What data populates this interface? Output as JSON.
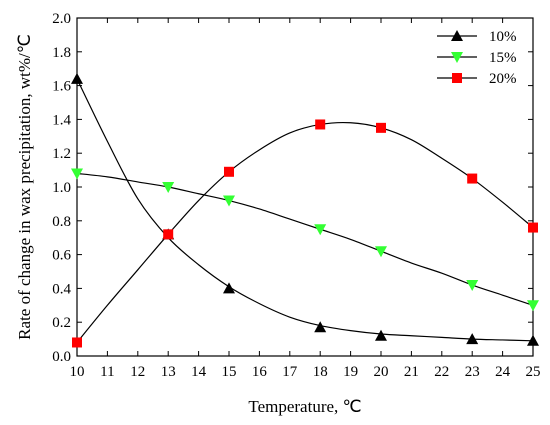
{
  "chart_data": {
    "type": "line",
    "xlabel": "Temperature, ℃",
    "ylabel": "Rate of change in wax precipitation, wt%/℃",
    "xlim": [
      10,
      25
    ],
    "ylim": [
      0,
      2.0
    ],
    "x_ticks": [
      10,
      11,
      12,
      13,
      14,
      15,
      16,
      17,
      18,
      19,
      20,
      21,
      22,
      23,
      24,
      25
    ],
    "y_ticks": [
      0.0,
      0.2,
      0.4,
      0.6,
      0.8,
      1.0,
      1.2,
      1.4,
      1.6,
      1.8,
      2.0
    ],
    "grid": false,
    "legend_position": "top-right",
    "series": [
      {
        "name": "10%",
        "marker": "triangle-up",
        "color": "#000000",
        "x": [
          10,
          13,
          15,
          18,
          20,
          23,
          25
        ],
        "y": [
          1.64,
          0.72,
          0.4,
          0.17,
          0.12,
          0.1,
          0.09
        ],
        "curve": [
          [
            10,
            1.64
          ],
          [
            11,
            1.27
          ],
          [
            12,
            0.93
          ],
          [
            13,
            0.7
          ],
          [
            14,
            0.54
          ],
          [
            15,
            0.41
          ],
          [
            16,
            0.31
          ],
          [
            17,
            0.23
          ],
          [
            18,
            0.18
          ],
          [
            19,
            0.15
          ],
          [
            20,
            0.13
          ],
          [
            21,
            0.12
          ],
          [
            22,
            0.11
          ],
          [
            23,
            0.1
          ],
          [
            24,
            0.095
          ],
          [
            25,
            0.09
          ]
        ]
      },
      {
        "name": "15%",
        "marker": "triangle-down",
        "color": "#33ff33",
        "x": [
          10,
          13,
          15,
          18,
          20,
          23,
          25
        ],
        "y": [
          1.08,
          1.0,
          0.92,
          0.75,
          0.62,
          0.42,
          0.3
        ],
        "curve": [
          [
            10,
            1.08
          ],
          [
            11,
            1.06
          ],
          [
            12,
            1.03
          ],
          [
            13,
            1.0
          ],
          [
            14,
            0.96
          ],
          [
            15,
            0.92
          ],
          [
            16,
            0.87
          ],
          [
            17,
            0.81
          ],
          [
            18,
            0.75
          ],
          [
            19,
            0.69
          ],
          [
            20,
            0.62
          ],
          [
            21,
            0.55
          ],
          [
            22,
            0.49
          ],
          [
            23,
            0.42
          ],
          [
            24,
            0.36
          ],
          [
            25,
            0.3
          ]
        ]
      },
      {
        "name": "20%",
        "marker": "square",
        "color": "#ff0000",
        "x": [
          10,
          13,
          15,
          18,
          20,
          23,
          25
        ],
        "y": [
          0.08,
          0.72,
          1.09,
          1.37,
          1.35,
          1.05,
          0.76
        ],
        "curve": [
          [
            10,
            0.08
          ],
          [
            11,
            0.3
          ],
          [
            12,
            0.51
          ],
          [
            13,
            0.72
          ],
          [
            14,
            0.92
          ],
          [
            15,
            1.09
          ],
          [
            16,
            1.22
          ],
          [
            17,
            1.32
          ],
          [
            18,
            1.37
          ],
          [
            19,
            1.38
          ],
          [
            20,
            1.35
          ],
          [
            21,
            1.28
          ],
          [
            22,
            1.17
          ],
          [
            23,
            1.05
          ],
          [
            24,
            0.91
          ],
          [
            25,
            0.76
          ]
        ]
      }
    ]
  }
}
